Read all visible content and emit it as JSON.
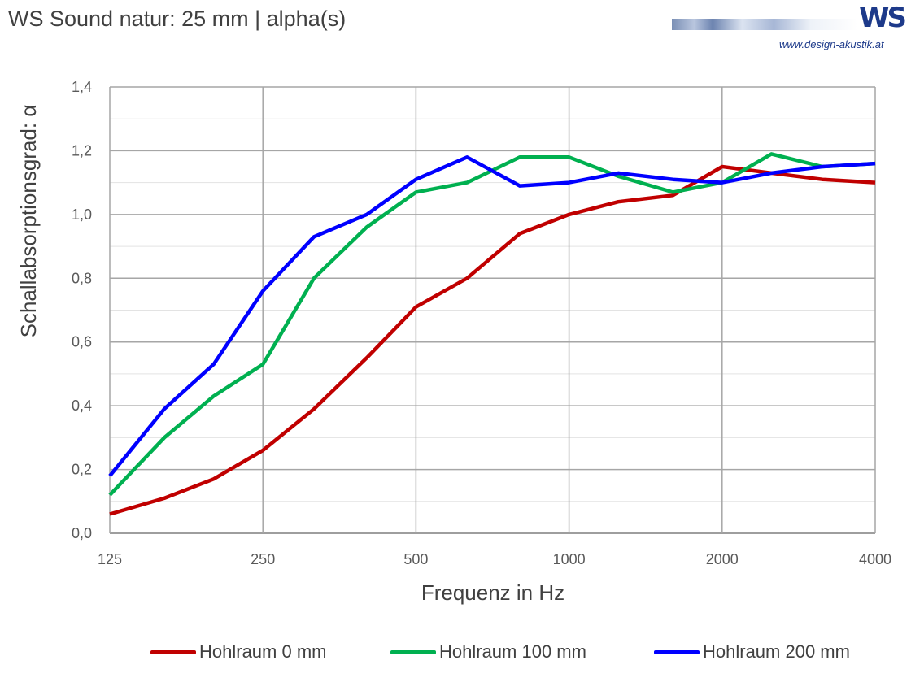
{
  "header": {
    "title": "WS Sound natur: 25 mm | alpha(s)",
    "logo_mark": "WS",
    "logo_url": "www.design-akustik.at"
  },
  "chart_data": {
    "type": "line",
    "x": [
      125,
      160,
      200,
      250,
      315,
      400,
      500,
      630,
      800,
      1000,
      1250,
      1600,
      2000,
      2500,
      3150,
      4000
    ],
    "xscale": "log",
    "xticks": [
      "125",
      "250",
      "500",
      "1000",
      "2000",
      "4000"
    ],
    "xlabel": "Frequenz in Hz",
    "ylabel": "Schallabsorptionsgrad: α",
    "ylim": [
      0,
      1.4
    ],
    "yticks": [
      "0,0",
      "0,2",
      "0,4",
      "0,6",
      "0,8",
      "1,0",
      "1,2",
      "1,4"
    ],
    "grid": true,
    "legend_position": "bottom",
    "series": [
      {
        "name": "Hohlraum 0 mm",
        "color": "#c00000",
        "values": [
          0.06,
          0.11,
          0.17,
          0.26,
          0.39,
          0.55,
          0.71,
          0.8,
          0.94,
          1.0,
          1.04,
          1.06,
          1.15,
          1.13,
          1.11,
          1.1
        ]
      },
      {
        "name": "Hohlraum 100 mm",
        "color": "#00b050",
        "values": [
          0.12,
          0.3,
          0.43,
          0.53,
          0.8,
          0.96,
          1.07,
          1.1,
          1.18,
          1.18,
          1.12,
          1.07,
          1.1,
          1.19,
          1.15,
          1.16
        ]
      },
      {
        "name": "Hohlraum 200 mm",
        "color": "#0000ff",
        "values": [
          0.18,
          0.39,
          0.53,
          0.76,
          0.93,
          1.0,
          1.11,
          1.18,
          1.09,
          1.1,
          1.13,
          1.11,
          1.1,
          1.13,
          1.15,
          1.16
        ]
      }
    ]
  }
}
